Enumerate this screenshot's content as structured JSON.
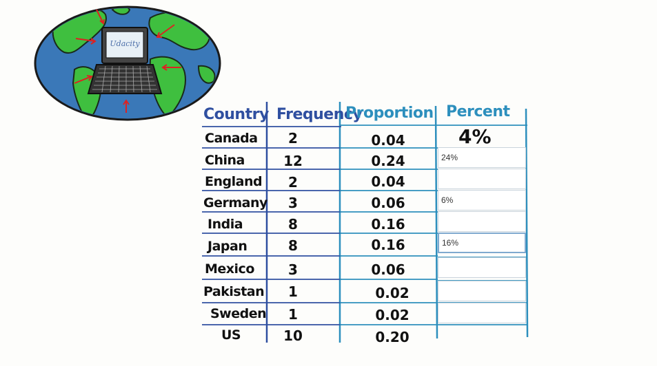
{
  "logo": {
    "brand_text": "Udacity"
  },
  "table": {
    "headers": {
      "country": "Country",
      "frequency": "Frequency",
      "proportion": "Proportion",
      "percent": "Percent"
    },
    "rows": [
      {
        "country": "Canada",
        "frequency": "2",
        "proportion": "0.04",
        "percent": "4%"
      },
      {
        "country": "China",
        "frequency": "12",
        "proportion": "0.24",
        "percent_input": "24%"
      },
      {
        "country": "England",
        "frequency": "2",
        "proportion": "0.04",
        "percent_input": ""
      },
      {
        "country": "Germany",
        "frequency": "3",
        "proportion": "0.06",
        "percent_input": "6%"
      },
      {
        "country": "India",
        "frequency": "8",
        "proportion": "0.16",
        "percent_input": ""
      },
      {
        "country": "Japan",
        "frequency": "8",
        "proportion": "0.16",
        "percent_input": "16%"
      },
      {
        "country": "Mexico",
        "frequency": "3",
        "proportion": "0.06",
        "percent_input": ""
      },
      {
        "country": "Pakistan",
        "frequency": "1",
        "proportion": "0.02",
        "percent_input": ""
      },
      {
        "country": "Sweden",
        "frequency": "1",
        "proportion": "0.02",
        "percent_input": ""
      },
      {
        "country": "US",
        "frequency": "10",
        "proportion": "0.20",
        "percent_input": ""
      }
    ]
  },
  "colors": {
    "line_blue": "#2f4fa0",
    "line_teal": "#2d8fbd",
    "ocean": "#3a78b8",
    "land": "#3fbf3f"
  }
}
